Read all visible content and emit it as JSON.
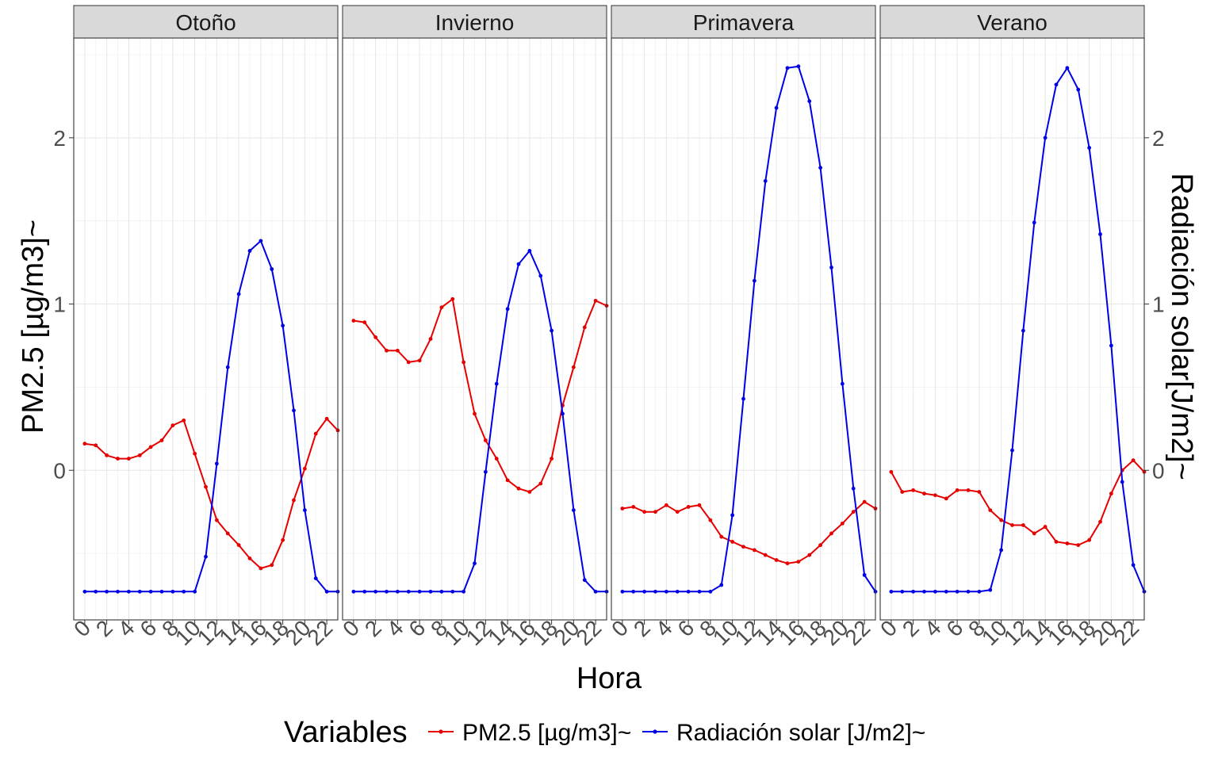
{
  "chart_data": {
    "type": "line",
    "x_label": "Hora",
    "y_label": "PM2.5 [µg/m3]~",
    "y2_label": "Radiación solar[J/m2]~",
    "x_ticks": [
      "0",
      "2",
      "4",
      "6",
      "8",
      "10",
      "12",
      "14",
      "16",
      "18",
      "20",
      "22"
    ],
    "y_ticks": [
      "0",
      "1",
      "2"
    ],
    "y2_ticks": [
      "0",
      "1",
      "2"
    ],
    "y_range": [
      -0.9,
      2.6
    ],
    "x_range": [
      -1,
      23
    ],
    "legend": {
      "title": "Variables",
      "position": "bottom",
      "items": [
        {
          "label": "PM2.5 [µg/m3]~",
          "color": "#e60000"
        },
        {
          "label": "Radiación solar [J/m2]~",
          "color": "#0000e6"
        }
      ]
    },
    "panels": [
      {
        "label": "Otoño",
        "series": [
          {
            "name": "PM2.5 [µg/m3]~",
            "color": "#e60000",
            "values": [
              0.16,
              0.15,
              0.09,
              0.07,
              0.07,
              0.09,
              0.14,
              0.18,
              0.27,
              0.3,
              0.1,
              -0.1,
              -0.3,
              -0.38,
              -0.45,
              -0.53,
              -0.59,
              -0.57,
              -0.42,
              -0.18,
              0.01,
              0.22,
              0.31,
              0.24
            ]
          },
          {
            "name": "Radiación solar [J/m2]~",
            "color": "#0000e6",
            "values": [
              -0.73,
              -0.73,
              -0.73,
              -0.73,
              -0.73,
              -0.73,
              -0.73,
              -0.73,
              -0.73,
              -0.73,
              -0.73,
              -0.52,
              0.04,
              0.62,
              1.06,
              1.32,
              1.38,
              1.21,
              0.87,
              0.36,
              -0.24,
              -0.65,
              -0.73,
              -0.73
            ]
          }
        ]
      },
      {
        "label": "Invierno",
        "series": [
          {
            "name": "PM2.5 [µg/m3]~",
            "color": "#e60000",
            "values": [
              0.9,
              0.89,
              0.8,
              0.72,
              0.72,
              0.65,
              0.66,
              0.79,
              0.98,
              1.03,
              0.65,
              0.34,
              0.18,
              0.07,
              -0.06,
              -0.11,
              -0.13,
              -0.08,
              0.07,
              0.39,
              0.62,
              0.86,
              1.02,
              0.99
            ]
          },
          {
            "name": "Radiación solar [J/m2]~",
            "color": "#0000e6",
            "values": [
              -0.73,
              -0.73,
              -0.73,
              -0.73,
              -0.73,
              -0.73,
              -0.73,
              -0.73,
              -0.73,
              -0.73,
              -0.73,
              -0.56,
              -0.01,
              0.52,
              0.97,
              1.24,
              1.32,
              1.17,
              0.84,
              0.34,
              -0.24,
              -0.66,
              -0.73,
              -0.73
            ]
          }
        ]
      },
      {
        "label": "Primavera",
        "series": [
          {
            "name": "PM2.5 [µg/m3]~",
            "color": "#e60000",
            "values": [
              -0.23,
              -0.22,
              -0.25,
              -0.25,
              -0.21,
              -0.25,
              -0.22,
              -0.21,
              -0.3,
              -0.4,
              -0.43,
              -0.46,
              -0.48,
              -0.51,
              -0.54,
              -0.56,
              -0.55,
              -0.51,
              -0.45,
              -0.38,
              -0.32,
              -0.25,
              -0.19,
              -0.23
            ]
          },
          {
            "name": "Radiación solar [J/m2]~",
            "color": "#0000e6",
            "values": [
              -0.73,
              -0.73,
              -0.73,
              -0.73,
              -0.73,
              -0.73,
              -0.73,
              -0.73,
              -0.73,
              -0.69,
              -0.27,
              0.43,
              1.14,
              1.74,
              2.18,
              2.42,
              2.43,
              2.22,
              1.82,
              1.22,
              0.52,
              -0.11,
              -0.63,
              -0.73
            ]
          }
        ]
      },
      {
        "label": "Verano",
        "series": [
          {
            "name": "PM2.5 [µg/m3]~",
            "color": "#e60000",
            "values": [
              -0.01,
              -0.13,
              -0.12,
              -0.14,
              -0.15,
              -0.17,
              -0.12,
              -0.12,
              -0.13,
              -0.24,
              -0.3,
              -0.33,
              -0.33,
              -0.38,
              -0.34,
              -0.43,
              -0.44,
              -0.45,
              -0.42,
              -0.31,
              -0.14,
              0.0,
              0.06,
              -0.01
            ]
          },
          {
            "name": "Radiación solar [J/m2]~",
            "color": "#0000e6",
            "values": [
              -0.73,
              -0.73,
              -0.73,
              -0.73,
              -0.73,
              -0.73,
              -0.73,
              -0.73,
              -0.73,
              -0.72,
              -0.48,
              0.12,
              0.84,
              1.49,
              2.0,
              2.32,
              2.42,
              2.29,
              1.94,
              1.42,
              0.75,
              -0.07,
              -0.57,
              -0.73
            ]
          }
        ]
      }
    ]
  }
}
